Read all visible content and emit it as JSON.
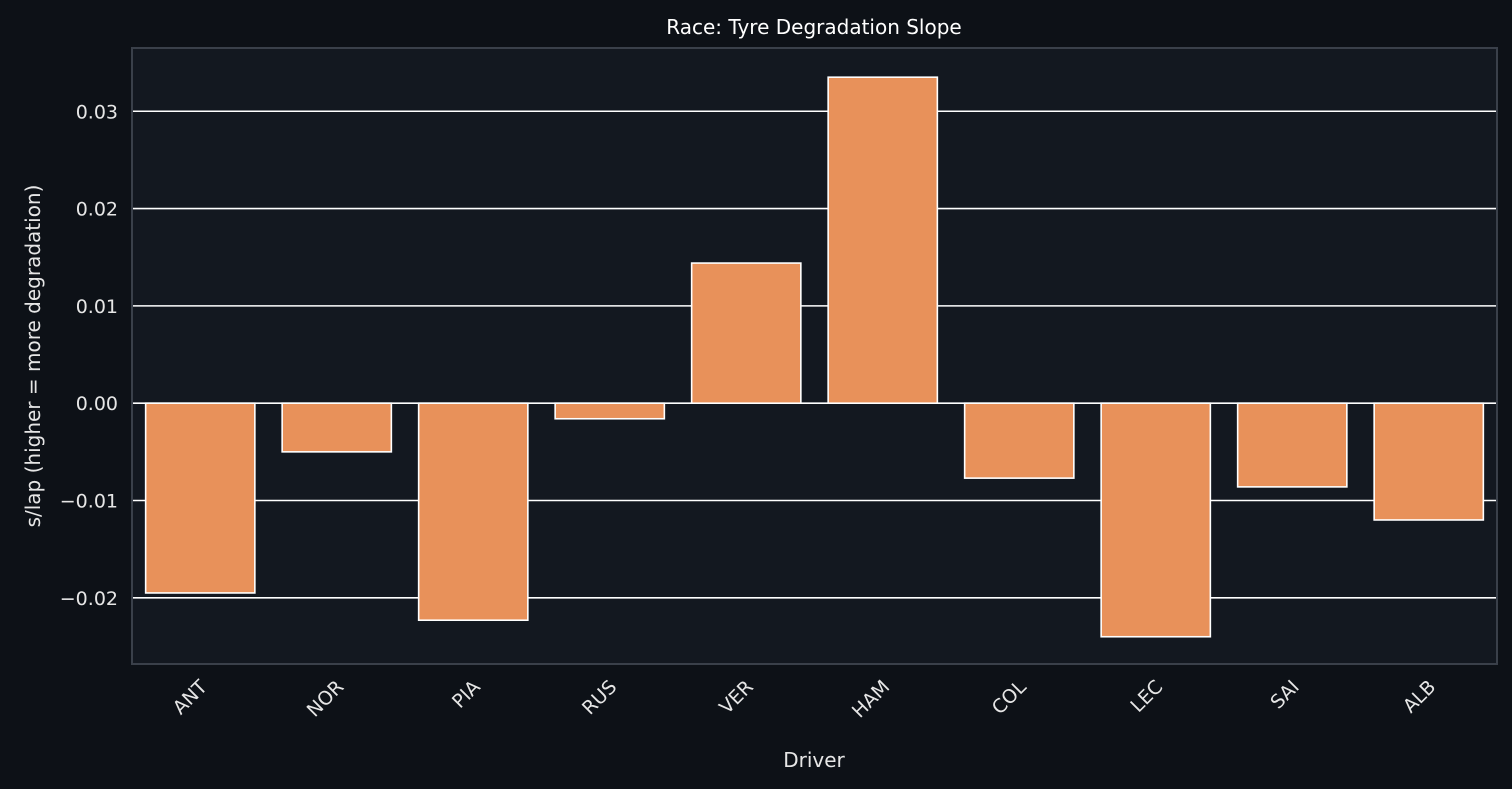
{
  "chart_data": {
    "type": "bar",
    "title": "Race: Tyre Degradation Slope",
    "xlabel": "Driver",
    "ylabel": "s/lap (higher = more degradation)",
    "categories": [
      "ANT",
      "NOR",
      "PIA",
      "RUS",
      "VER",
      "HAM",
      "COL",
      "LEC",
      "SAI",
      "ALB"
    ],
    "values": [
      -0.0195,
      -0.005,
      -0.0223,
      -0.0016,
      0.0144,
      0.0335,
      -0.0077,
      -0.024,
      -0.0086,
      -0.012
    ],
    "ylim": [
      -0.0268,
      0.0365
    ],
    "yticks": [
      -0.02,
      -0.01,
      0.0,
      0.01,
      0.02,
      0.03
    ],
    "ytick_labels": [
      "−0.02",
      "−0.01",
      "0.00",
      "0.01",
      "0.02",
      "0.03"
    ],
    "grid": "horizontal",
    "legend": "none",
    "colors": {
      "figure_bg": "#0d1117",
      "axes_bg": "#131820",
      "bar": "#e8915a",
      "bar_edge": "#ffffff",
      "grid": "#ffffff",
      "spine": "#3a404a",
      "text": "#e6e6e6"
    }
  }
}
